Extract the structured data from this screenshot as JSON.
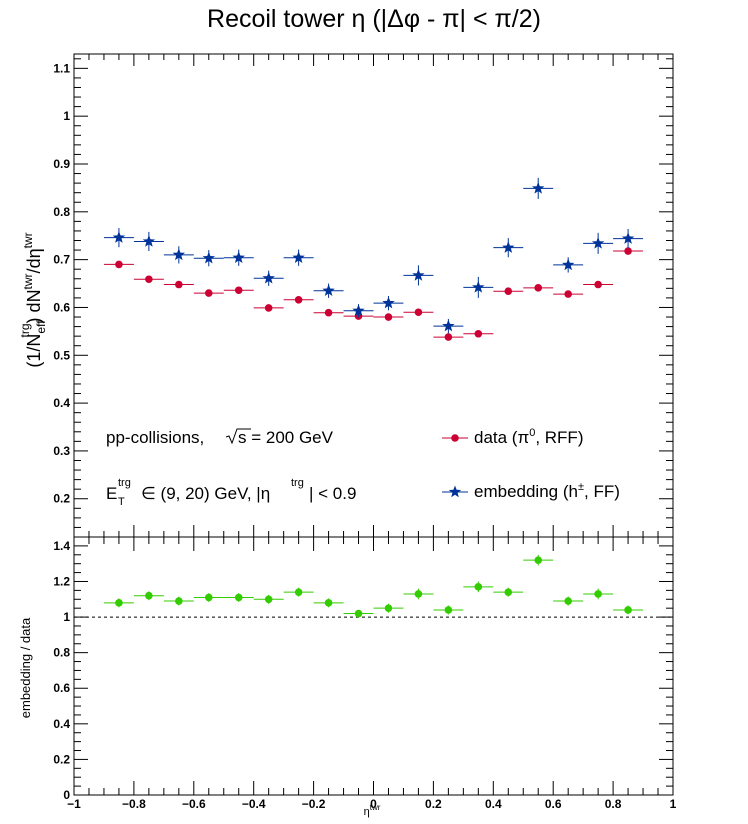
{
  "chart_data": {
    "type": "scatter",
    "title": "Recoil tower η (|Δφ - π| < π/2)",
    "x": [
      -0.85,
      -0.75,
      -0.65,
      -0.55,
      -0.45,
      -0.35,
      -0.25,
      -0.15,
      -0.05,
      0.05,
      0.15,
      0.25,
      0.35,
      0.45,
      0.55,
      0.65,
      0.75,
      0.85
    ],
    "x_half_width": 0.05,
    "top_panel": {
      "ylabel": "(1/N_eff^trg) dN^twr/dη^twr",
      "ylim": [
        0.12,
        1.13
      ],
      "yticks": [
        0.2,
        0.3,
        0.4,
        0.5,
        0.6,
        0.7,
        0.8,
        0.9,
        1,
        1.1
      ],
      "series": [
        {
          "name": "data (π⁰, RFF)",
          "color": "#cc0033",
          "marker": "circle",
          "values": [
            0.69,
            0.659,
            0.648,
            0.63,
            0.636,
            0.599,
            0.616,
            0.589,
            0.582,
            0.58,
            0.59,
            0.538,
            0.545,
            0.634,
            0.641,
            0.628,
            0.648,
            0.718
          ],
          "errors": [
            0.004,
            0.004,
            0.004,
            0.004,
            0.004,
            0.004,
            0.004,
            0.004,
            0.004,
            0.004,
            0.004,
            0.004,
            0.004,
            0.004,
            0.004,
            0.004,
            0.004,
            0.004
          ]
        },
        {
          "name": "embedding (h±, FF)",
          "color": "#003399",
          "marker": "star",
          "values": [
            0.746,
            0.738,
            0.71,
            0.703,
            0.704,
            0.661,
            0.704,
            0.635,
            0.593,
            0.609,
            0.667,
            0.561,
            0.642,
            0.725,
            0.849,
            0.689,
            0.734,
            0.744
          ],
          "errors": [
            0.02,
            0.02,
            0.018,
            0.017,
            0.017,
            0.016,
            0.017,
            0.015,
            0.014,
            0.015,
            0.021,
            0.015,
            0.022,
            0.02,
            0.022,
            0.016,
            0.022,
            0.02
          ]
        }
      ],
      "annotations": {
        "line1_text": "pp-collisions,",
        "line1_energy": "s = 200 GeV",
        "line2_e": "E",
        "line2_sup": "trg",
        "line2_sub": "T",
        "line2_mid": "∈ (9, 20) GeV, |η",
        "line2_sup2": "trg",
        "line2_end": "| < 0.9"
      }
    },
    "bottom_panel": {
      "ylabel": "embedding / data",
      "ylim": [
        0,
        1.45
      ],
      "yticks": [
        0,
        0.2,
        0.4,
        0.6,
        0.8,
        1,
        1.2,
        1.4
      ],
      "reference_line": 1,
      "series": [
        {
          "name": "embedding / data",
          "color": "#33cc00",
          "marker": "circle",
          "values": [
            1.08,
            1.12,
            1.09,
            1.11,
            1.11,
            1.1,
            1.14,
            1.08,
            1.02,
            1.05,
            1.13,
            1.04,
            1.17,
            1.14,
            1.32,
            1.09,
            1.13,
            1.04
          ],
          "errors": [
            0.025,
            0.025,
            0.025,
            0.025,
            0.025,
            0.025,
            0.025,
            0.025,
            0.02,
            0.025,
            0.03,
            0.025,
            0.03,
            0.025,
            0.03,
            0.025,
            0.03,
            0.025
          ]
        }
      ]
    },
    "xlim": [
      -1,
      1
    ],
    "xticks": [
      -1,
      -0.8,
      -0.6,
      -0.4,
      -0.2,
      0,
      0.2,
      0.4,
      0.6,
      0.8,
      1
    ],
    "xticklabels": [
      "−1",
      "−0.8",
      "−0.6",
      "−0.4",
      "−0.2",
      "0",
      "0.2",
      "0.4",
      "0.6",
      "0.8",
      "1"
    ],
    "xlabel": "η^twr",
    "grid": false,
    "legend_position": "right, inside top panel (lower half)"
  }
}
